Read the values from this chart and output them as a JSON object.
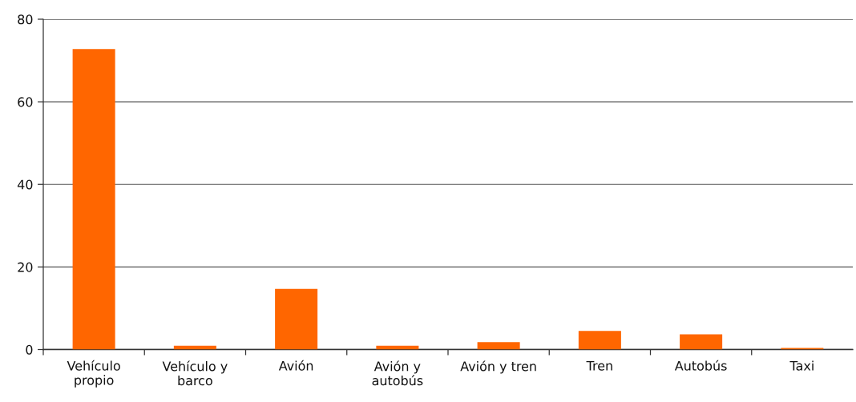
{
  "chart_data": {
    "type": "bar",
    "categories": [
      "Vehículo\npropio",
      "Vehículo y\nbarco",
      "Avión",
      "Avión y\nautobús",
      "Avión y tren",
      "Tren",
      "Autobús",
      "Taxi"
    ],
    "values": [
      72.8,
      0.9,
      14.7,
      0.9,
      1.8,
      4.5,
      3.7,
      0.4
    ],
    "color": "#ff6600",
    "ylim": [
      0,
      80
    ],
    "yticks": [
      0,
      20,
      40,
      60,
      80
    ],
    "grid": "y"
  }
}
